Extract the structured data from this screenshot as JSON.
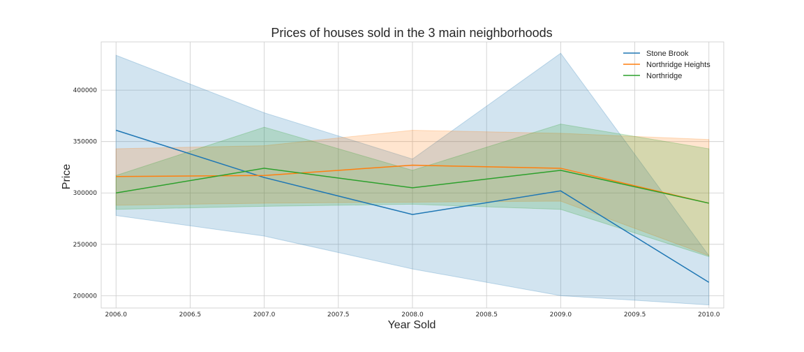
{
  "chart_data": {
    "type": "line",
    "title": "Prices of houses sold in the 3 main neighborhoods",
    "xlabel": "Year Sold",
    "ylabel": "Price",
    "x": [
      2006.0,
      2007.0,
      2008.0,
      2009.0,
      2010.0
    ],
    "xlim": [
      2005.9,
      2010.1
    ],
    "ylim": [
      188000,
      447000
    ],
    "xticks": [
      2006.0,
      2006.5,
      2007.0,
      2007.5,
      2008.0,
      2008.5,
      2009.0,
      2009.5,
      2010.0
    ],
    "xtick_labels": [
      "2006.0",
      "2006.5",
      "2007.0",
      "2007.5",
      "2008.0",
      "2008.5",
      "2009.0",
      "2009.5",
      "2010.0"
    ],
    "yticks": [
      200000,
      250000,
      300000,
      350000,
      400000
    ],
    "ytick_labels": [
      "200000",
      "250000",
      "300000",
      "350000",
      "400000"
    ],
    "grid": true,
    "legend_position": "top-right",
    "series": [
      {
        "name": "Stone Brook",
        "color": "#1f77b4",
        "values": [
          361000,
          315000,
          279000,
          302000,
          213000
        ],
        "ci_lower": [
          278000,
          258000,
          226000,
          200000,
          191000
        ],
        "ci_upper": [
          434000,
          378000,
          333000,
          436000,
          239000
        ]
      },
      {
        "name": "Northridge Heights",
        "color": "#ff7f0e",
        "values": [
          316000,
          317000,
          327000,
          324000,
          290000
        ],
        "ci_lower": [
          288000,
          290000,
          291000,
          292000,
          239000
        ],
        "ci_upper": [
          343000,
          346000,
          361000,
          358000,
          352000
        ]
      },
      {
        "name": "Northridge",
        "color": "#2ca02c",
        "values": [
          300000,
          324000,
          305000,
          322000,
          290000
        ],
        "ci_lower": [
          284000,
          287000,
          289000,
          284000,
          238000
        ],
        "ci_upper": [
          317000,
          364000,
          322000,
          367000,
          343000
        ]
      }
    ]
  }
}
